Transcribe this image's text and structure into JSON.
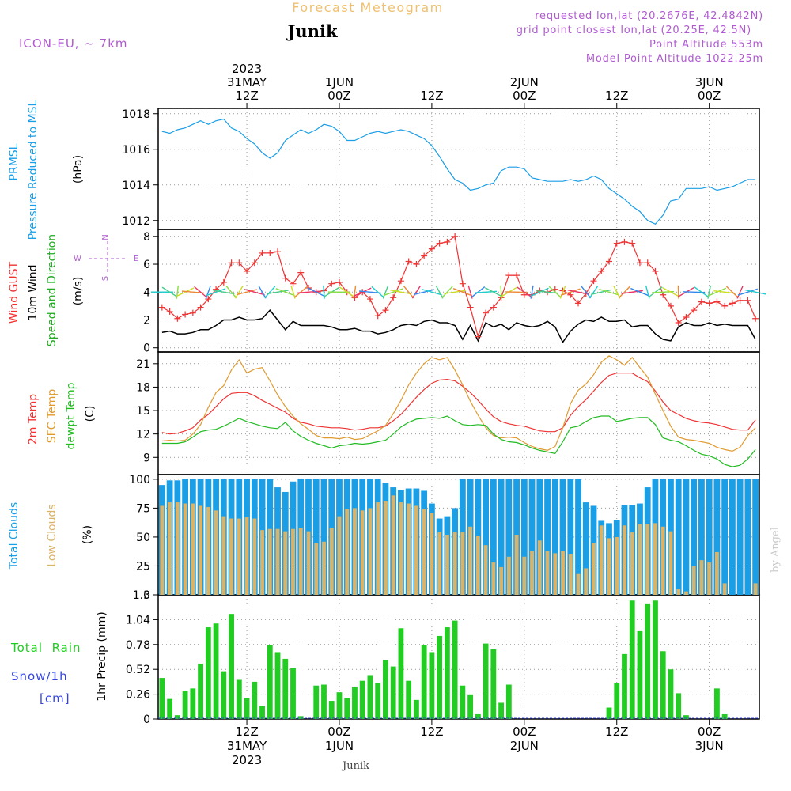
{
  "header": {
    "title": "Forecast Meteogram",
    "location": "Junik",
    "model": "ICON-EU, ~ 7km",
    "requested": "requested lon,lat (20.2676E, 42.4842N)",
    "gridpoint": "grid point closest lon,lat (20.25E, 42.5N)",
    "point_altitude": "Point Altitude 553m",
    "model_altitude": "Model Point Altitude 1022.25m",
    "footer_location": "Junik",
    "credit": "by Angel"
  },
  "colors": {
    "pressure": "#1a9ee6",
    "gust": "#ee3333",
    "wind": "#000000",
    "direction": "#22aa22",
    "temp2m": "#ee3333",
    "sfc": "#e09a30",
    "dewpt": "#22bb22",
    "total_clouds": "#1a9ee6",
    "low_clouds": "#d9b36a",
    "rain": "#22cc22",
    "snow": "#3344dd",
    "purple": "#b05ad0"
  },
  "time_axis": {
    "top_labels": [
      {
        "year": "2023",
        "day": "31MAY",
        "hour": "12Z",
        "t": 12
      },
      {
        "year": "",
        "day": "1JUN",
        "hour": "00Z",
        "t": 24
      },
      {
        "year": "",
        "day": "",
        "hour": "12Z",
        "t": 36
      },
      {
        "year": "",
        "day": "2JUN",
        "hour": "00Z",
        "t": 48
      },
      {
        "year": "",
        "day": "",
        "hour": "12Z",
        "t": 60
      },
      {
        "year": "",
        "day": "3JUN",
        "hour": "00Z",
        "t": 72
      }
    ],
    "bottom_labels": [
      {
        "hour": "12Z",
        "day": "31MAY",
        "year": "2023",
        "t": 12
      },
      {
        "hour": "00Z",
        "day": "1JUN",
        "year": "",
        "t": 24
      },
      {
        "hour": "12Z",
        "day": "",
        "year": "",
        "t": 36
      },
      {
        "hour": "00Z",
        "day": "2JUN",
        "year": "",
        "t": 48
      },
      {
        "hour": "12Z",
        "day": "",
        "year": "",
        "t": 60
      },
      {
        "hour": "00Z",
        "day": "3JUN",
        "year": "",
        "t": 72
      }
    ],
    "start_hour": 1,
    "end_hour": 78
  },
  "panels": {
    "pressure": {
      "labels": [
        {
          "text": "PRMSL",
          "color": "pressure"
        },
        {
          "text": "Pressure Reduced to MSL",
          "color": "pressure"
        },
        {
          "text": "(hPa)",
          "color": "wind"
        }
      ],
      "ticks": [
        1012,
        1014,
        1016,
        1018
      ],
      "range": [
        1011.5,
        1018.3
      ]
    },
    "wind": {
      "labels": [
        {
          "text": "Wind GUST",
          "color": "gust"
        },
        {
          "text": "10m Wind",
          "color": "wind"
        },
        {
          "text": "Speed and Direction",
          "color": "direction"
        },
        {
          "text": "(m/s)",
          "color": "wind"
        }
      ],
      "compass": {
        "n": "N",
        "s": "S",
        "w": "W",
        "e": "E"
      },
      "ticks": [
        0,
        2,
        4,
        6,
        8
      ],
      "range": [
        -0.3,
        8.5
      ]
    },
    "temp": {
      "labels": [
        {
          "text": "2m Temp",
          "color": "temp2m"
        },
        {
          "text": "SFC Temp",
          "color": "sfc"
        },
        {
          "text": "dewpt Temp",
          "color": "dewpt"
        },
        {
          "text": "(C)",
          "color": "wind"
        }
      ],
      "ticks": [
        9,
        12,
        15,
        18,
        21
      ],
      "range": [
        6.8,
        22.5
      ]
    },
    "clouds": {
      "labels": [
        {
          "text": "Total Clouds",
          "color": "total_clouds"
        },
        {
          "text": "Low Clouds",
          "color": "low_clouds"
        },
        {
          "text": "(%)",
          "color": "wind"
        }
      ],
      "ticks": [
        0,
        25,
        50,
        75,
        100
      ],
      "range": [
        0,
        104
      ]
    },
    "precip": {
      "labels": [
        {
          "text": "Total  Rain",
          "color": "rain"
        },
        {
          "text": "Snow/1h",
          "color": "snow"
        },
        {
          "text": "[cm]",
          "color": "snow"
        },
        {
          "text": "1hr Precip (mm)",
          "color": "wind"
        }
      ],
      "ticks": [
        0,
        0.26,
        0.52,
        0.78,
        1.04,
        1.3
      ],
      "tick_labels": [
        "0",
        "0.26",
        "0.52",
        "0.78",
        "1.04",
        "1.3"
      ],
      "range": [
        0,
        1.3
      ]
    }
  },
  "chart_data": {
    "type": "line",
    "x_unit": "hours since 2023-05-31 00Z",
    "x": [
      1,
      2,
      3,
      4,
      5,
      6,
      7,
      8,
      9,
      10,
      11,
      12,
      13,
      14,
      15,
      16,
      17,
      18,
      19,
      20,
      21,
      22,
      23,
      24,
      25,
      26,
      27,
      28,
      29,
      30,
      31,
      32,
      33,
      34,
      35,
      36,
      37,
      38,
      39,
      40,
      41,
      42,
      43,
      44,
      45,
      46,
      47,
      48,
      49,
      50,
      51,
      52,
      53,
      54,
      55,
      56,
      57,
      58,
      59,
      60,
      61,
      62,
      63,
      64,
      65,
      66,
      67,
      68,
      69,
      70,
      71,
      72,
      73,
      74,
      75,
      76,
      77,
      78
    ],
    "series": [
      {
        "name": "PRMSL",
        "panel": "pressure",
        "values": [
          1017.0,
          1016.9,
          1017.1,
          1017.2,
          1017.4,
          1017.6,
          1017.4,
          1017.6,
          1017.7,
          1017.2,
          1017.0,
          1016.6,
          1016.3,
          1015.8,
          1015.5,
          1015.8,
          1016.5,
          1016.8,
          1017.1,
          1016.9,
          1017.1,
          1017.4,
          1017.3,
          1017.0,
          1016.5,
          1016.5,
          1016.7,
          1016.9,
          1017.0,
          1016.9,
          1017.0,
          1017.1,
          1017.0,
          1016.8,
          1016.6,
          1016.2,
          1015.6,
          1014.9,
          1014.3,
          1014.1,
          1013.7,
          1013.8,
          1014.0,
          1014.1,
          1014.8,
          1015.0,
          1015.0,
          1014.9,
          1014.4,
          1014.3,
          1014.2,
          1014.2,
          1014.2,
          1014.3,
          1014.2,
          1014.3,
          1014.5,
          1014.3,
          1013.8,
          1013.5,
          1013.2,
          1012.8,
          1012.5,
          1012.0,
          1011.8,
          1012.3,
          1013.1,
          1013.2,
          1013.8,
          1013.8,
          1013.8,
          1013.9,
          1013.7,
          1013.8,
          1013.9,
          1014.1,
          1014.3,
          1014.3
        ]
      },
      {
        "name": "Wind GUST",
        "panel": "wind",
        "values": [
          2.9,
          2.6,
          2.1,
          2.4,
          2.5,
          2.9,
          3.5,
          4.2,
          4.7,
          6.1,
          6.1,
          5.5,
          6.1,
          6.8,
          6.8,
          6.9,
          5.0,
          4.6,
          5.4,
          4.3,
          4.0,
          4.1,
          4.6,
          4.7,
          4.0,
          3.6,
          4.0,
          3.5,
          2.3,
          2.7,
          3.6,
          4.8,
          6.2,
          6.0,
          6.6,
          7.1,
          7.5,
          7.6,
          8.0,
          4.6,
          2.9,
          0.8,
          2.5,
          2.9,
          3.6,
          5.2,
          5.2,
          3.8,
          3.8,
          4.1,
          4.0,
          4.2,
          4.1,
          3.8,
          3.2,
          3.9,
          4.8,
          5.5,
          6.2,
          7.5,
          7.6,
          7.5,
          6.1,
          6.1,
          5.5,
          3.8,
          3.0,
          1.8,
          2.2,
          2.7,
          3.3,
          3.2,
          3.3,
          3.0,
          3.2,
          3.4,
          3.4,
          2.1
        ]
      },
      {
        "name": "10m Wind",
        "panel": "wind",
        "values": [
          1.1,
          1.2,
          1.0,
          1.0,
          1.1,
          1.3,
          1.3,
          1.6,
          2.0,
          2.0,
          2.2,
          2.0,
          2.0,
          2.1,
          2.7,
          2.0,
          1.3,
          1.9,
          1.6,
          1.6,
          1.6,
          1.6,
          1.5,
          1.3,
          1.3,
          1.4,
          1.2,
          1.2,
          1.0,
          1.1,
          1.3,
          1.6,
          1.7,
          1.6,
          1.9,
          2.0,
          1.8,
          1.8,
          1.6,
          0.6,
          1.6,
          0.5,
          1.8,
          1.5,
          1.7,
          1.3,
          1.8,
          1.6,
          1.5,
          1.6,
          1.9,
          1.5,
          0.4,
          1.2,
          1.7,
          2.0,
          1.9,
          2.2,
          1.9,
          1.9,
          2.0,
          1.5,
          1.6,
          1.6,
          1.0,
          0.6,
          0.5,
          1.5,
          1.8,
          1.6,
          1.6,
          1.8,
          1.6,
          1.7,
          1.6,
          1.6,
          1.6,
          0.6
        ]
      },
      {
        "name": "2m Temp",
        "panel": "temp",
        "values": [
          12.2,
          12.0,
          12.1,
          12.4,
          12.8,
          13.8,
          14.5,
          15.5,
          16.5,
          17.2,
          17.3,
          17.3,
          16.9,
          16.3,
          15.8,
          15.3,
          14.8,
          14.0,
          13.5,
          13.3,
          13.0,
          12.9,
          12.8,
          12.8,
          12.7,
          12.5,
          12.6,
          12.8,
          12.8,
          13.0,
          13.7,
          14.5,
          15.6,
          16.7,
          17.7,
          18.5,
          18.9,
          19.0,
          18.8,
          18.1,
          17.3,
          16.3,
          15.2,
          14.2,
          13.6,
          13.3,
          13.1,
          13.0,
          12.7,
          12.4,
          12.3,
          12.3,
          12.8,
          14.4,
          15.5,
          16.4,
          17.5,
          18.6,
          19.5,
          19.8,
          19.8,
          19.8,
          19.2,
          18.7,
          17.5,
          16.1,
          15.0,
          14.5,
          14.0,
          13.7,
          13.5,
          13.4,
          13.2,
          12.9,
          12.6,
          12.5,
          12.5,
          13.8
        ]
      },
      {
        "name": "SFC Temp",
        "panel": "temp",
        "values": [
          11.1,
          11.2,
          11.1,
          11.2,
          12.0,
          13.2,
          15.4,
          17.3,
          18.2,
          20.2,
          21.5,
          19.8,
          20.3,
          20.5,
          18.8,
          17.0,
          15.5,
          14.3,
          13.3,
          12.6,
          11.8,
          11.5,
          11.5,
          11.4,
          11.6,
          11.3,
          11.4,
          11.9,
          12.4,
          13.1,
          14.6,
          16.3,
          18.3,
          19.8,
          21.0,
          21.8,
          21.5,
          21.8,
          20.2,
          18.3,
          16.2,
          14.4,
          12.8,
          11.8,
          11.5,
          11.6,
          11.5,
          10.9,
          10.4,
          10.1,
          9.9,
          10.4,
          12.8,
          15.9,
          17.6,
          18.4,
          19.6,
          21.2,
          22.0,
          21.5,
          20.8,
          21.8,
          20.5,
          19.3,
          17.1,
          15.0,
          13.0,
          11.6,
          11.3,
          11.2,
          11.0,
          10.8,
          10.3,
          10.0,
          9.8,
          10.3,
          11.8,
          12.8
        ]
      },
      {
        "name": "dewpt Temp",
        "panel": "temp",
        "values": [
          10.8,
          10.8,
          10.8,
          11.0,
          11.6,
          12.3,
          12.5,
          12.6,
          13.0,
          13.5,
          14.0,
          13.6,
          13.3,
          13.0,
          12.8,
          12.7,
          13.5,
          12.4,
          11.7,
          11.2,
          10.8,
          10.5,
          10.2,
          10.5,
          10.6,
          10.8,
          10.7,
          10.8,
          11.0,
          11.2,
          12.0,
          12.9,
          13.5,
          13.9,
          14.0,
          14.1,
          14.0,
          14.3,
          13.7,
          13.2,
          13.1,
          13.2,
          13.1,
          12.0,
          11.3,
          11.0,
          10.9,
          10.6,
          10.2,
          9.9,
          9.7,
          9.5,
          11.0,
          12.8,
          13.0,
          13.6,
          14.1,
          14.3,
          14.3,
          13.6,
          13.8,
          14.0,
          14.1,
          14.1,
          13.2,
          11.5,
          11.2,
          11.0,
          10.5,
          9.9,
          9.4,
          9.2,
          8.8,
          8.1,
          7.8,
          8.0,
          8.8,
          10.0
        ]
      }
    ],
    "clouds": {
      "total": [
        95,
        99,
        99,
        100,
        100,
        100,
        100,
        100,
        100,
        100,
        100,
        100,
        100,
        100,
        100,
        93,
        89,
        98,
        100,
        100,
        100,
        100,
        100,
        100,
        100,
        100,
        100,
        100,
        100,
        97,
        93,
        91,
        92,
        92,
        90,
        79,
        66,
        68,
        75,
        100,
        100,
        100,
        100,
        100,
        100,
        100,
        100,
        100,
        100,
        100,
        100,
        100,
        100,
        100,
        100,
        80,
        77,
        64,
        62,
        65,
        78,
        78,
        79,
        93,
        100,
        100,
        100,
        100,
        100,
        100,
        100,
        100,
        100,
        100,
        100,
        100,
        100,
        100
      ],
      "low": [
        77,
        80,
        80,
        79,
        79,
        77,
        76,
        73,
        68,
        66,
        66,
        67,
        66,
        56,
        57,
        57,
        55,
        57,
        58,
        55,
        45,
        46,
        58,
        68,
        74,
        75,
        73,
        75,
        80,
        81,
        86,
        80,
        79,
        77,
        74,
        71,
        54,
        52,
        54,
        54,
        59,
        51,
        43,
        28,
        24,
        33,
        52,
        33,
        38,
        47,
        38,
        36,
        38,
        35,
        18,
        23,
        45,
        60,
        49,
        50,
        60,
        54,
        61,
        61,
        62,
        59,
        55,
        5,
        3,
        25,
        30,
        28,
        37,
        10,
        0,
        0,
        0,
        10
      ]
    },
    "rain": [
      0.43,
      0.21,
      0.04,
      0.29,
      0.32,
      0.58,
      0.96,
      1.0,
      0.5,
      1.1,
      0.41,
      0.22,
      0.39,
      0.14,
      0.77,
      0.7,
      0.63,
      0.53,
      0.03,
      0.0,
      0.35,
      0.36,
      0.19,
      0.28,
      0.22,
      0.34,
      0.4,
      0.46,
      0.38,
      0.62,
      0.55,
      0.95,
      0.4,
      0.2,
      0.77,
      0.7,
      0.87,
      0.96,
      1.03,
      0.35,
      0.25,
      0.05,
      0.79,
      0.73,
      0.17,
      0.36,
      0.0,
      0.0,
      0.0,
      0.0,
      0.0,
      0.0,
      0.0,
      0.0,
      0.0,
      0.0,
      0.0,
      0.0,
      0.12,
      0.38,
      0.68,
      1.24,
      0.92,
      1.21,
      1.24,
      0.71,
      0.52,
      0.27,
      0.04,
      0.0,
      0.0,
      0.0,
      0.32,
      0.05,
      0.0,
      0.0,
      0.0,
      0.0
    ]
  }
}
